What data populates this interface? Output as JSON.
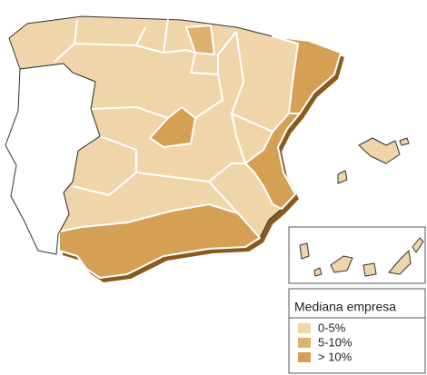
{
  "legend": {
    "title": "Mediana empresa",
    "items": [
      {
        "label": "0-5%",
        "color": "#f0d5ab"
      },
      {
        "label": "5-10%",
        "color": "#ddb26c"
      },
      {
        "label": "> 10%",
        "color": "#d6a054"
      }
    ]
  }
}
